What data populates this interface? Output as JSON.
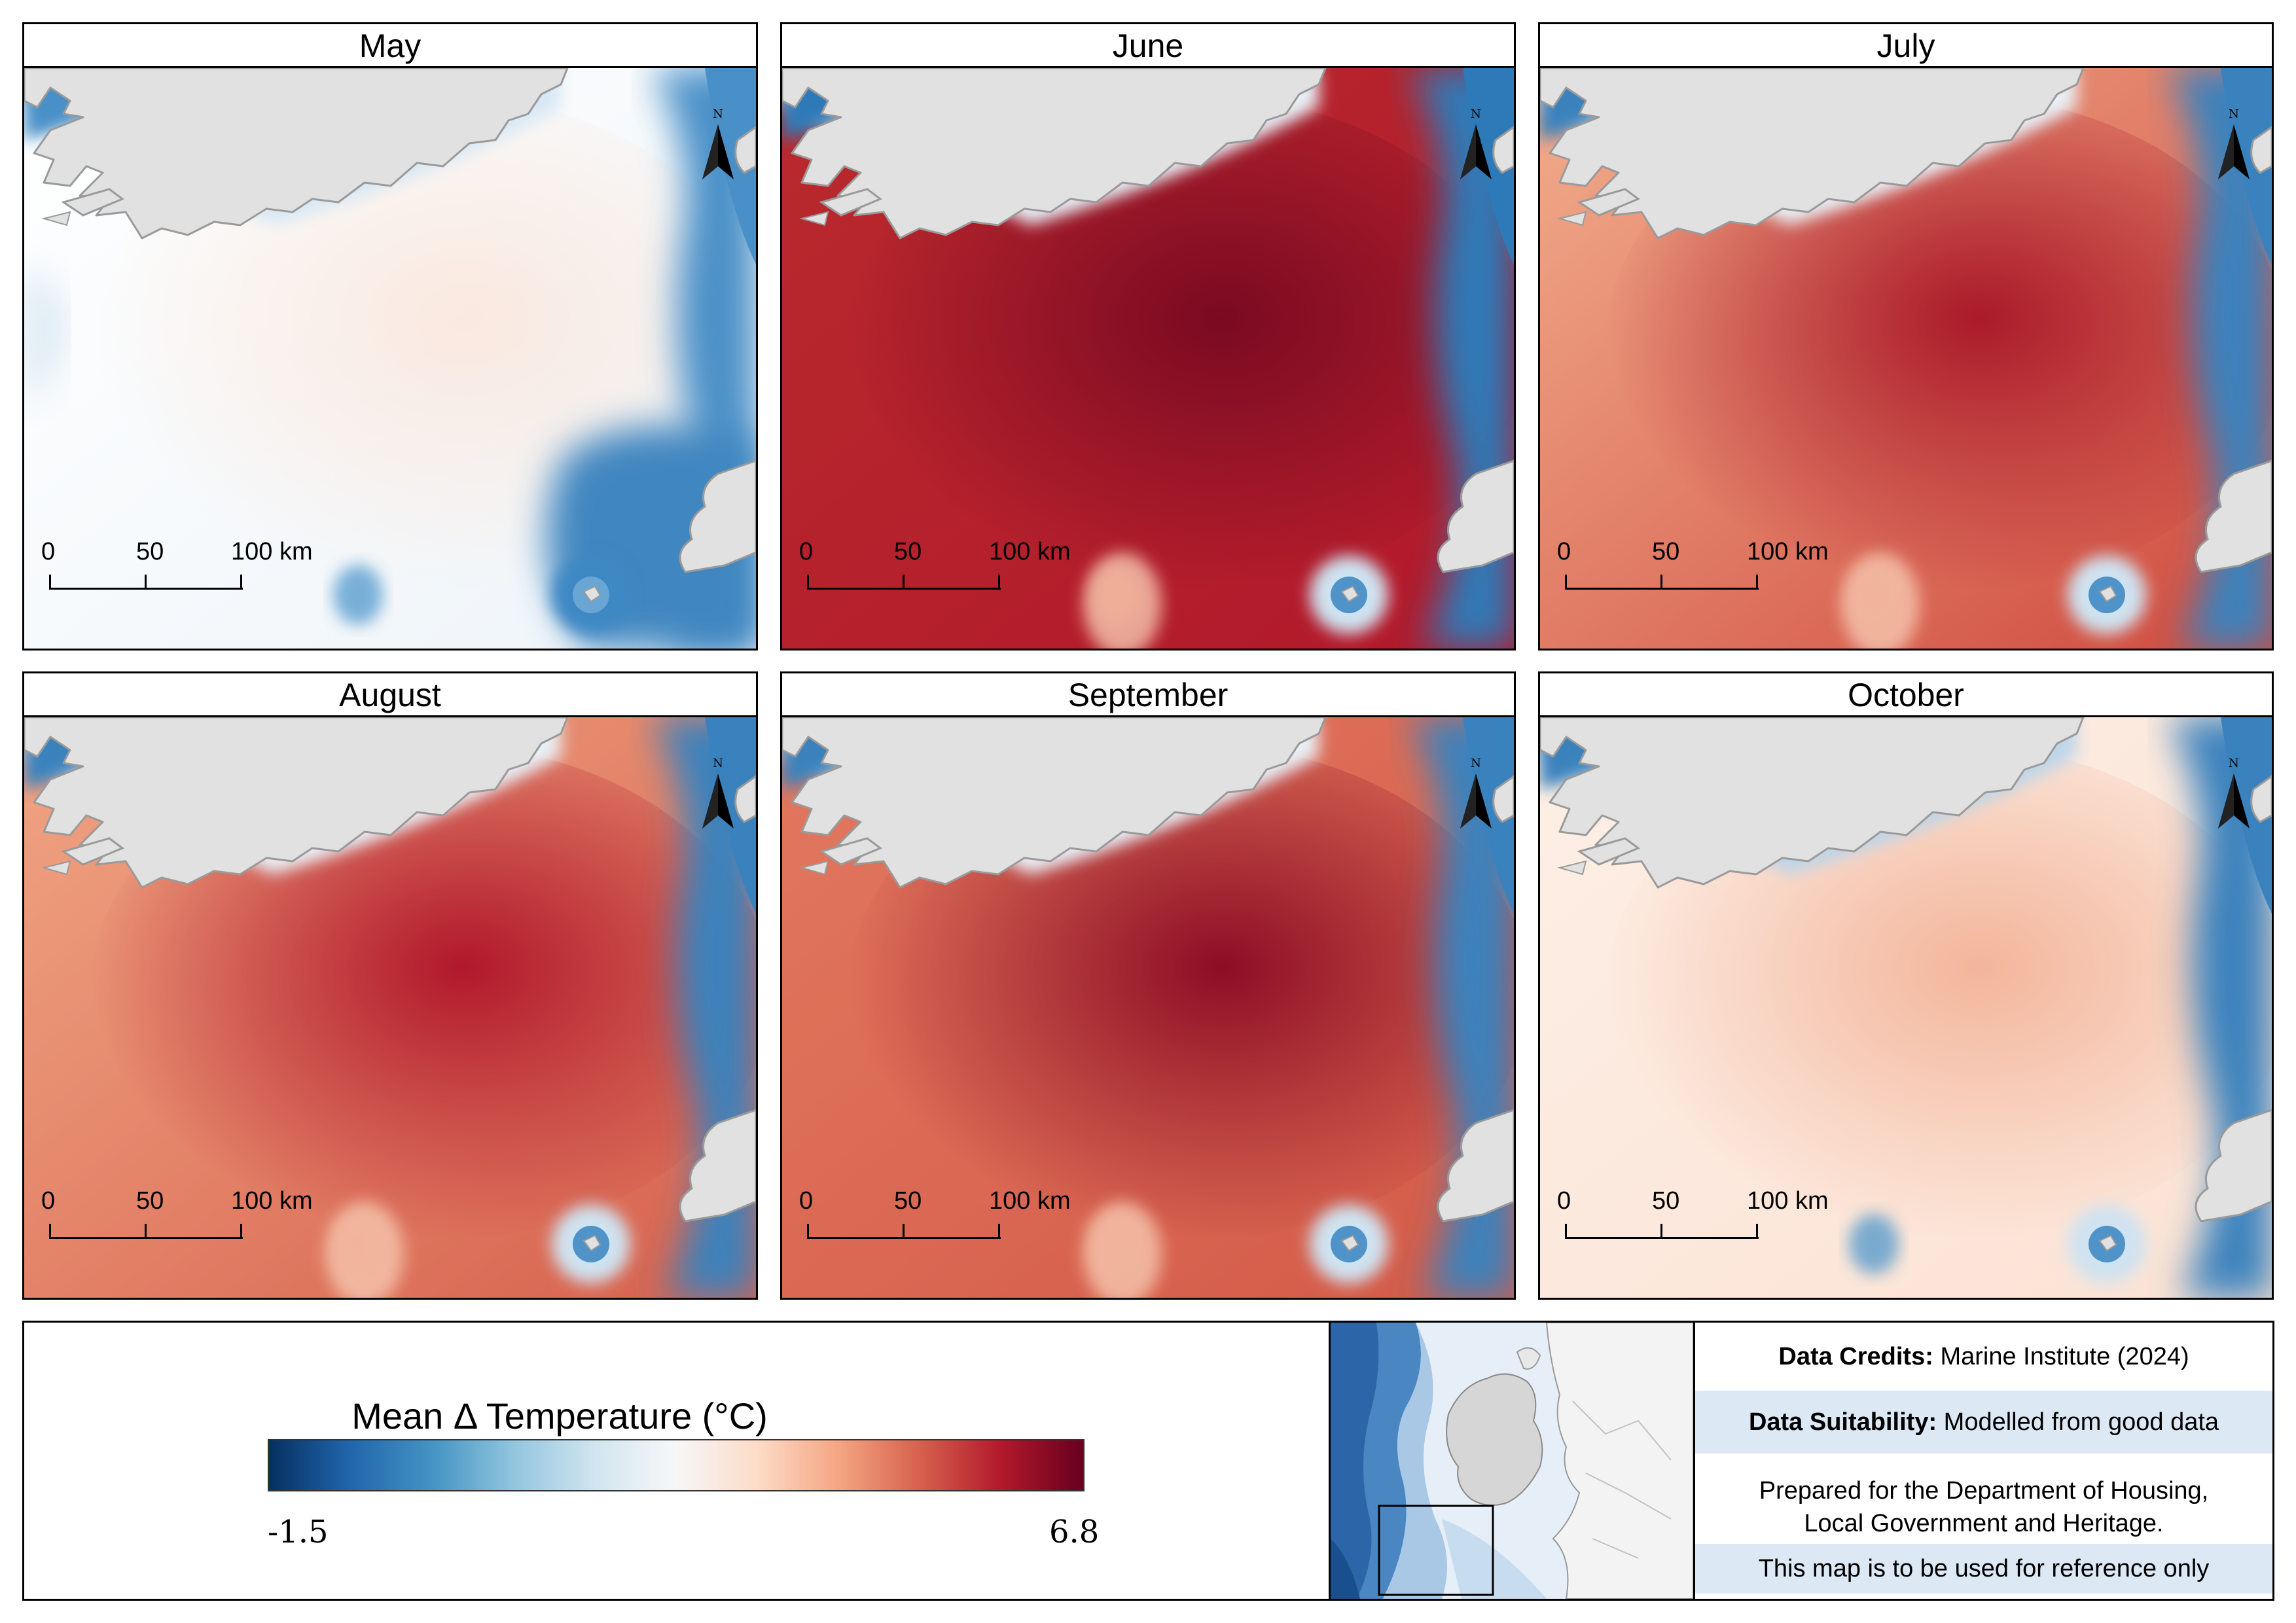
{
  "months": [
    {
      "name": "May"
    },
    {
      "name": "June"
    },
    {
      "name": "July"
    },
    {
      "name": "August"
    },
    {
      "name": "September"
    },
    {
      "name": "October"
    }
  ],
  "scale_bar": {
    "labels": [
      "0",
      "50",
      "100 km"
    ]
  },
  "north_arrow": {
    "label": "N",
    "icon": "north-arrow-icon"
  },
  "legend": {
    "title": "Mean Δ Temperature (°C)",
    "min_label": "-1.5",
    "max_label": "6.8",
    "colors": [
      "#053061",
      "#2166ac",
      "#4393c3",
      "#92c5de",
      "#d1e5f0",
      "#f7f7f7",
      "#fddbc7",
      "#f4a582",
      "#d6604d",
      "#b2182b",
      "#67001f"
    ]
  },
  "credits": {
    "data_credits_label": "Data Credits:",
    "data_credits_value": "Marine Institute (2024)",
    "suitability_label": "Data Suitability:",
    "suitability_value": "Modelled from good data",
    "prepared_line1": "Prepared for the Department of Housing,",
    "prepared_line2": "Local Government and Heritage.",
    "reference": "This map is to be used for reference only"
  },
  "colors": {
    "land": "#e1e1e1",
    "coastline": "#9a9a9a",
    "row_highlight": "#dce8f4"
  }
}
